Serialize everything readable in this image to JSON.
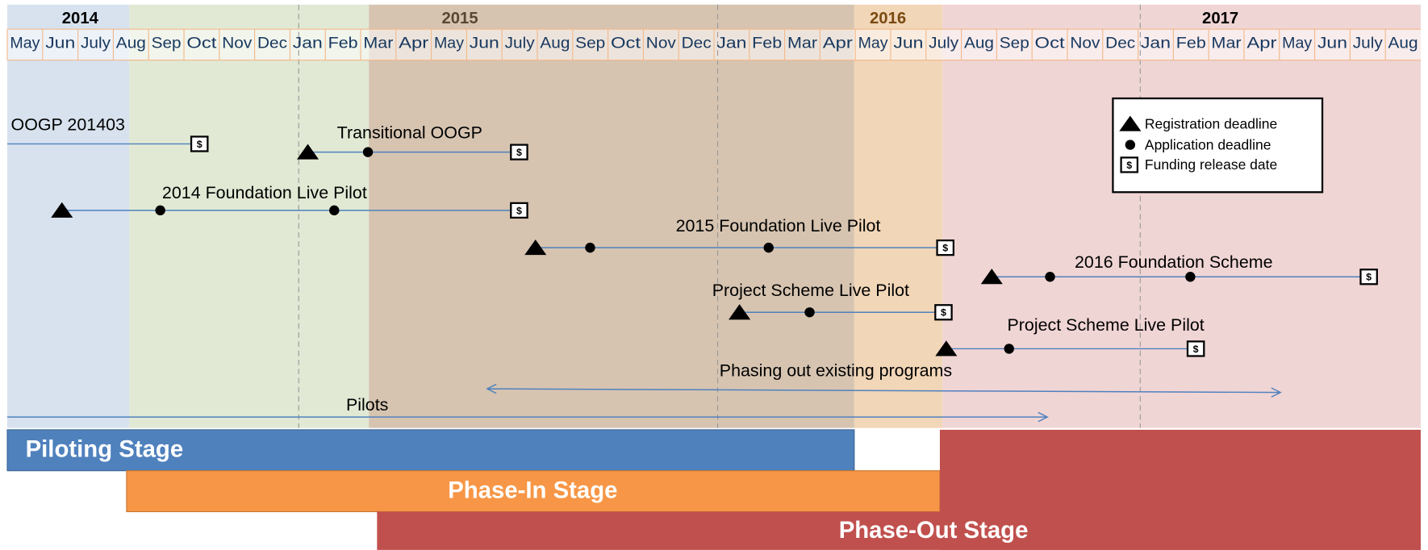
{
  "header": {
    "years": [
      "2014",
      "2015",
      "2016",
      "2017"
    ],
    "months": [
      "May",
      "Jun",
      "July",
      "Aug",
      "Sep",
      "Oct",
      "Nov",
      "Dec",
      "Jan",
      "Feb",
      "Mar",
      "Apr",
      "May",
      "Jun",
      "July",
      "Aug",
      "Sep",
      "Oct",
      "Nov",
      "Dec",
      "Jan",
      "Feb",
      "Mar",
      "Apr",
      "May",
      "Jun",
      "July",
      "Aug",
      "Sep",
      "Oct",
      "Nov",
      "Dec",
      "Jan",
      "Feb",
      "Mar",
      "Apr",
      "May",
      "Jun",
      "July",
      "Aug"
    ]
  },
  "programs": [
    {
      "label": "OOGP 201403"
    },
    {
      "label": "Transitional OOGP"
    },
    {
      "label": "2014 Foundation Live Pilot"
    },
    {
      "label": "2015 Foundation Live Pilot"
    },
    {
      "label": "2016 Foundation Scheme"
    },
    {
      "label": "Project Scheme Live Pilot"
    },
    {
      "label": "Project Scheme Live Pilot"
    }
  ],
  "arrows": [
    {
      "label": "Phasing out existing programs"
    },
    {
      "label": "Pilots"
    }
  ],
  "legend": {
    "symbol": "$",
    "items": [
      "Registration deadline",
      "Application deadline",
      "Funding release date"
    ]
  },
  "stages": [
    "Piloting Stage",
    "Phase-In Stage",
    "Phase-Out Stage"
  ]
}
